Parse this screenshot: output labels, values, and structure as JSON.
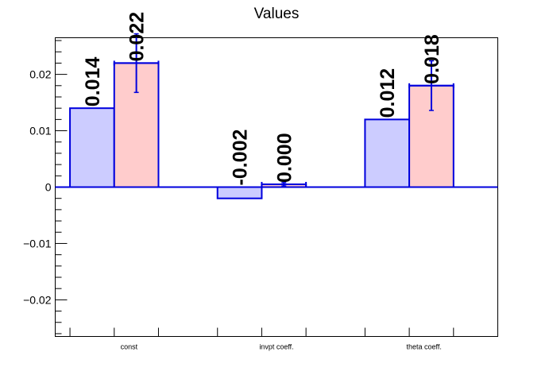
{
  "chart_data": {
    "type": "bar",
    "title": "Values",
    "xlabel": "",
    "ylabel": "",
    "categories": [
      "const",
      "invpt coeff.",
      "theta coeff."
    ],
    "ylim": [
      -0.0265,
      0.0265
    ],
    "yticks": [
      -0.02,
      -0.01,
      0,
      0.01,
      0.02
    ],
    "ytick_labels": [
      "−0.02",
      "−0.01",
      "0",
      "0.01",
      "0.02"
    ],
    "grid": false,
    "legend": "none",
    "series": [
      {
        "values": [
          0.014,
          -0.002,
          0.012
        ],
        "labels": [
          "0.014",
          "-0.002",
          "0.012"
        ],
        "fill": "#ccccff",
        "stroke": "#0000dd",
        "errors": null
      },
      {
        "values": [
          0.022,
          0.0005,
          0.018
        ],
        "labels": [
          "0.022",
          "0.000",
          "0.018"
        ],
        "fill": "#ffcccc",
        "stroke": "#0000dd",
        "errors": [
          0.0052,
          0.0003,
          0.0044
        ]
      }
    ]
  }
}
